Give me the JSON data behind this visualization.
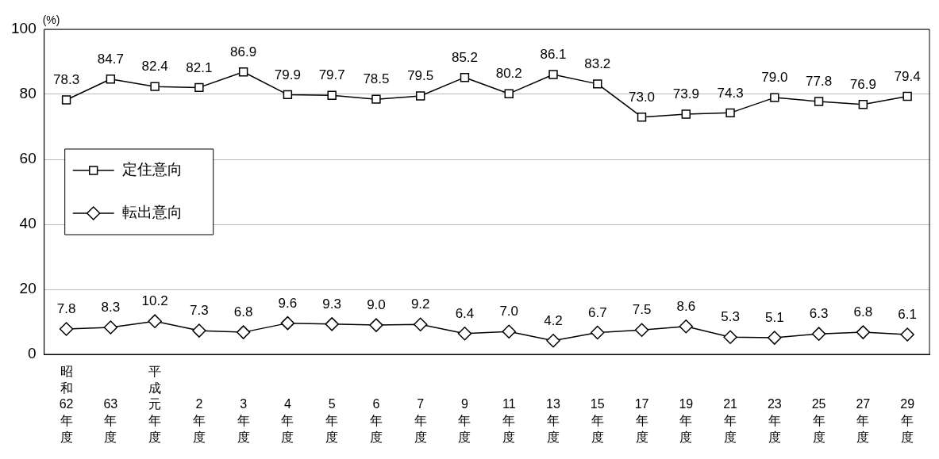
{
  "chart_data": {
    "type": "line",
    "ylabel": "(%)",
    "categories": [
      "昭和62年度",
      "63年度",
      "平成元年度",
      "2年度",
      "3年度",
      "4年度",
      "5年度",
      "6年度",
      "7年度",
      "9年度",
      "11年度",
      "13年度",
      "15年度",
      "17年度",
      "19年度",
      "21年度",
      "23年度",
      "25年度",
      "27年度",
      "29年度"
    ],
    "series": [
      {
        "name": "定住意向",
        "color": "#000000",
        "marker": "square",
        "values": [
          78.3,
          84.7,
          82.4,
          82.1,
          86.9,
          79.9,
          79.7,
          78.5,
          79.5,
          85.2,
          80.2,
          86.1,
          83.2,
          73.0,
          73.9,
          74.3,
          79.0,
          77.8,
          76.9,
          79.4
        ],
        "value_labels": [
          "78.3",
          "84.7",
          "82.4",
          "82.1",
          "86.9",
          "79.9",
          "79.7",
          "78.5",
          "79.5",
          "85.2",
          "80.2",
          "86.1",
          "83.2",
          "73.0",
          "73.9",
          "74.3",
          "79.0",
          "77.8",
          "76.9",
          "79.4"
        ]
      },
      {
        "name": "転出意向",
        "color": "#000000",
        "marker": "diamond",
        "values": [
          7.8,
          8.3,
          10.2,
          7.3,
          6.8,
          9.6,
          9.3,
          9.0,
          9.2,
          6.4,
          7.0,
          4.2,
          6.7,
          7.5,
          8.6,
          5.3,
          5.1,
          6.3,
          6.8,
          6.1
        ],
        "value_labels": [
          "7.8",
          "8.3",
          "10.2",
          "7.3",
          "6.8",
          "9.6",
          "9.3",
          "9.0",
          "9.2",
          "6.4",
          "7.0",
          "4.2",
          "6.7",
          "7.5",
          "8.6",
          "5.3",
          "5.1",
          "6.3",
          "6.8",
          "6.1"
        ]
      }
    ],
    "ylim": [
      0,
      100
    ],
    "yticks": [
      0,
      20,
      40,
      60,
      80,
      100
    ],
    "grid": "y",
    "legend": "left",
    "line_style": "solid"
  }
}
